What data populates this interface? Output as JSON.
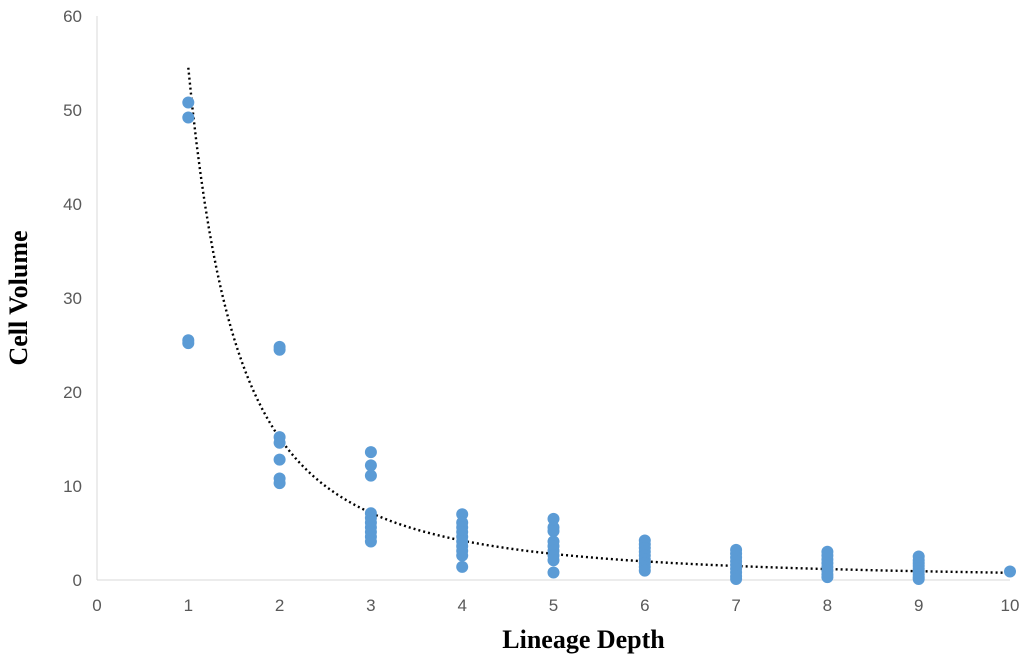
{
  "chart_data": {
    "type": "scatter",
    "title": "",
    "xlabel": "Lineage Depth",
    "ylabel": "Cell Volume",
    "xlim": [
      0,
      10
    ],
    "ylim": [
      0,
      60
    ],
    "x_ticks": [
      "0",
      "1",
      "2",
      "3",
      "4",
      "5",
      "6",
      "7",
      "8",
      "9",
      "10"
    ],
    "y_ticks": [
      "0",
      "10",
      "20",
      "30",
      "40",
      "50",
      "60"
    ],
    "grid": false,
    "legend": "none",
    "colors": {
      "points": "#5b9bd5",
      "trendline": "#000000",
      "axis": "#d9d9d9"
    },
    "series": [
      {
        "points": [
          [
            1,
            50.8
          ],
          [
            1,
            49.2
          ],
          [
            1,
            25.5
          ],
          [
            1,
            25.2
          ],
          [
            2,
            24.8
          ],
          [
            2,
            24.5
          ],
          [
            2,
            15.2
          ],
          [
            2,
            14.6
          ],
          [
            2,
            12.8
          ],
          [
            2,
            10.8
          ],
          [
            2,
            10.3
          ],
          [
            3,
            13.6
          ],
          [
            3,
            12.2
          ],
          [
            3,
            11.1
          ],
          [
            3,
            7.1
          ],
          [
            3,
            6.6
          ],
          [
            3,
            6.1
          ],
          [
            3,
            5.6
          ],
          [
            3,
            5.1
          ],
          [
            3,
            4.6
          ],
          [
            3,
            4.1
          ],
          [
            4,
            7.0
          ],
          [
            4,
            6.1
          ],
          [
            4,
            5.6
          ],
          [
            4,
            5.1
          ],
          [
            4,
            4.6
          ],
          [
            4,
            4.1
          ],
          [
            4,
            3.6
          ],
          [
            4,
            3.1
          ],
          [
            4,
            2.6
          ],
          [
            4,
            1.4
          ],
          [
            5,
            6.5
          ],
          [
            5,
            5.6
          ],
          [
            5,
            5.2
          ],
          [
            5,
            4.1
          ],
          [
            5,
            3.6
          ],
          [
            5,
            3.1
          ],
          [
            5,
            2.6
          ],
          [
            5,
            2.1
          ],
          [
            5,
            0.8
          ],
          [
            6,
            4.2
          ],
          [
            6,
            3.8
          ],
          [
            6,
            3.4
          ],
          [
            6,
            3.0
          ],
          [
            6,
            2.6
          ],
          [
            6,
            2.2
          ],
          [
            6,
            1.8
          ],
          [
            6,
            1.4
          ],
          [
            6,
            1.0
          ],
          [
            7,
            3.2
          ],
          [
            7,
            2.8
          ],
          [
            7,
            2.4
          ],
          [
            7,
            2.0
          ],
          [
            7,
            1.6
          ],
          [
            7,
            1.2
          ],
          [
            7,
            0.8
          ],
          [
            7,
            0.4
          ],
          [
            7,
            0.1
          ],
          [
            8,
            3.0
          ],
          [
            8,
            2.6
          ],
          [
            8,
            2.2
          ],
          [
            8,
            1.8
          ],
          [
            8,
            1.4
          ],
          [
            8,
            1.0
          ],
          [
            8,
            0.6
          ],
          [
            8,
            0.3
          ],
          [
            9,
            2.5
          ],
          [
            9,
            2.1
          ],
          [
            9,
            1.8
          ],
          [
            9,
            1.5
          ],
          [
            9,
            1.2
          ],
          [
            9,
            0.9
          ],
          [
            9,
            0.6
          ],
          [
            9,
            0.3
          ],
          [
            9,
            0.1
          ],
          [
            10,
            0.9
          ]
        ]
      }
    ],
    "trendline": {
      "type": "power",
      "a": 54.5,
      "b": -1.85,
      "x_from": 1,
      "x_to": 10
    }
  }
}
